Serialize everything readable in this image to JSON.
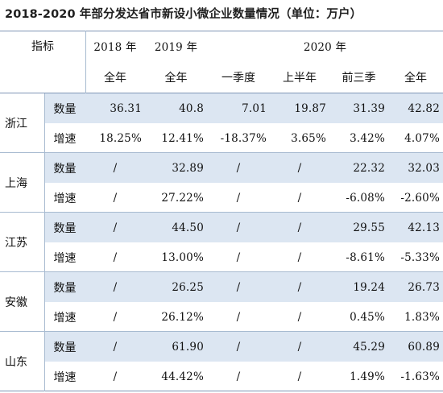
{
  "title": "2018-2020 年部分发达省市新设小微企业数量情况（单位：万户）",
  "header": {
    "indicator": "指标",
    "years": [
      "2018 年",
      "2019 年",
      "2020 年"
    ],
    "periods": [
      "全年",
      "全年",
      "一季度",
      "上半年",
      "前三季",
      "全年"
    ]
  },
  "rows": [
    {
      "region": "浙江",
      "metrics": [
        {
          "label": "数量",
          "values": [
            "36.31",
            "40.8",
            "7.01",
            "19.87",
            "31.39",
            "42.82"
          ]
        },
        {
          "label": "增速",
          "values": [
            "18.25%",
            "12.41%",
            "-18.37%",
            "3.65%",
            "3.42%",
            "4.07%"
          ]
        }
      ]
    },
    {
      "region": "上海",
      "metrics": [
        {
          "label": "数量",
          "values": [
            "/",
            "32.89",
            "/",
            "/",
            "22.32",
            "32.03"
          ]
        },
        {
          "label": "增速",
          "values": [
            "/",
            "27.22%",
            "/",
            "/",
            "-6.08%",
            "-2.60%"
          ]
        }
      ]
    },
    {
      "region": "江苏",
      "metrics": [
        {
          "label": "数量",
          "values": [
            "/",
            "44.50",
            "/",
            "/",
            "29.55",
            "42.13"
          ]
        },
        {
          "label": "增速",
          "values": [
            "/",
            "13.00%",
            "/",
            "/",
            "-8.61%",
            "-5.33%"
          ]
        }
      ]
    },
    {
      "region": "安徽",
      "metrics": [
        {
          "label": "数量",
          "values": [
            "/",
            "26.25",
            "/",
            "/",
            "19.24",
            "26.73"
          ]
        },
        {
          "label": "增速",
          "values": [
            "/",
            "26.12%",
            "/",
            "/",
            "0.45%",
            "1.83%"
          ]
        }
      ]
    },
    {
      "region": "山东",
      "metrics": [
        {
          "label": "数量",
          "values": [
            "/",
            "61.90",
            "/",
            "/",
            "45.29",
            "60.89"
          ]
        },
        {
          "label": "增速",
          "values": [
            "/",
            "44.42%",
            "/",
            "/",
            "1.49%",
            "-1.63%"
          ]
        }
      ]
    }
  ],
  "colors": {
    "row_blue": "#dce6f2",
    "rule": "#a7bad0"
  }
}
